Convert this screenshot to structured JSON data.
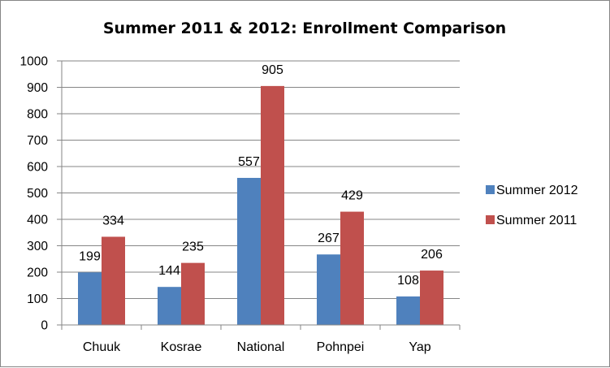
{
  "chart_data": {
    "type": "bar",
    "title": "Summer 2011 & 2012: Enrollment Comparison",
    "xlabel": "",
    "ylabel": "",
    "categories": [
      "Chuuk",
      "Kosrae",
      "National",
      "Pohnpei",
      "Yap"
    ],
    "series": [
      {
        "name": "Summer 2012",
        "color": "#4F81BD",
        "values": [
          199,
          144,
          557,
          267,
          108
        ]
      },
      {
        "name": "Summer 2011",
        "color": "#C0504D",
        "values": [
          334,
          235,
          905,
          429,
          206
        ]
      }
    ],
    "ylim": [
      0,
      1000
    ],
    "yticks": [
      "0",
      "100",
      "200",
      "300",
      "400",
      "500",
      "600",
      "700",
      "800",
      "900",
      "1000"
    ],
    "grid": true,
    "legend": "right"
  }
}
